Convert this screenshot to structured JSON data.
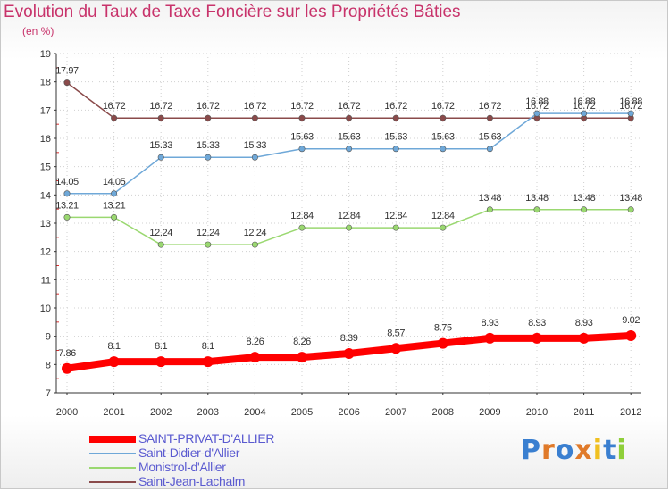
{
  "title": "Evolution du Taux de Taxe Foncière sur les Propriétés Bâties",
  "subtitle": "(en %)",
  "logo": {
    "text": "Proxiti",
    "colors": [
      "#3a7fd0",
      "#e07a2a",
      "#3a7fd0",
      "#e07a2a",
      "#f0c020",
      "#3a7fd0",
      "#8fcf3a"
    ]
  },
  "chart_data": {
    "type": "line",
    "title": "Evolution du Taux de Taxe Foncière sur les Propriétés Bâties",
    "ylabel": "(en %)",
    "xlabel": "",
    "x": [
      "2000",
      "2001",
      "2002",
      "2003",
      "2004",
      "2005",
      "2006",
      "2007",
      "2008",
      "2009",
      "2010",
      "2011",
      "2012"
    ],
    "ylim": [
      7,
      19
    ],
    "yticks": [
      "7",
      "8",
      "9",
      "10",
      "11",
      "12",
      "13",
      "14",
      "15",
      "16",
      "17",
      "18",
      "19"
    ],
    "grid": true,
    "legend": "bottom-left",
    "series": [
      {
        "name": "SAINT-PRIVAT-D'ALLIER",
        "color": "#ff0000",
        "width": 8,
        "values": [
          7.86,
          8.1,
          8.1,
          8.1,
          8.26,
          8.26,
          8.39,
          8.57,
          8.75,
          8.93,
          8.93,
          8.93,
          9.02
        ],
        "labels": [
          "7.86",
          "8.1",
          "8.1",
          "8.1",
          "8.26",
          "8.26",
          "8.39",
          "8.57",
          "8.75",
          "8.93",
          "8.93",
          "8.93",
          "9.02"
        ]
      },
      {
        "name": "Saint-Didier-d'Allier",
        "color": "#6fa8d8",
        "width": 1.5,
        "values": [
          14.05,
          14.05,
          15.33,
          15.33,
          15.33,
          15.63,
          15.63,
          15.63,
          15.63,
          15.63,
          16.88,
          16.88,
          16.88
        ],
        "labels": [
          "14.05",
          "14.05",
          "15.33",
          "15.33",
          "15.33",
          "15.63",
          "15.63",
          "15.63",
          "15.63",
          "15.63",
          "16.88",
          "16.88",
          "16.88"
        ]
      },
      {
        "name": "Monistrol-d'Allier",
        "color": "#9ad870",
        "width": 1.5,
        "values": [
          13.21,
          13.21,
          12.24,
          12.24,
          12.24,
          12.84,
          12.84,
          12.84,
          12.84,
          13.48,
          13.48,
          13.48,
          13.48
        ],
        "labels": [
          "13.21",
          "13.21",
          "12.24",
          "12.24",
          "12.24",
          "12.84",
          "12.84",
          "12.84",
          "12.84",
          "13.48",
          "13.48",
          "13.48",
          "13.48"
        ]
      },
      {
        "name": "Saint-Jean-Lachalm",
        "color": "#8a4a4a",
        "width": 1.5,
        "values": [
          17.97,
          16.72,
          16.72,
          16.72,
          16.72,
          16.72,
          16.72,
          16.72,
          16.72,
          16.72,
          16.72,
          16.72,
          16.72
        ],
        "labels": [
          "17.97",
          "16.72",
          "16.72",
          "16.72",
          "16.72",
          "16.72",
          "16.72",
          "16.72",
          "16.72",
          "16.72",
          "16.72",
          "16.72",
          "16.72"
        ]
      }
    ]
  }
}
